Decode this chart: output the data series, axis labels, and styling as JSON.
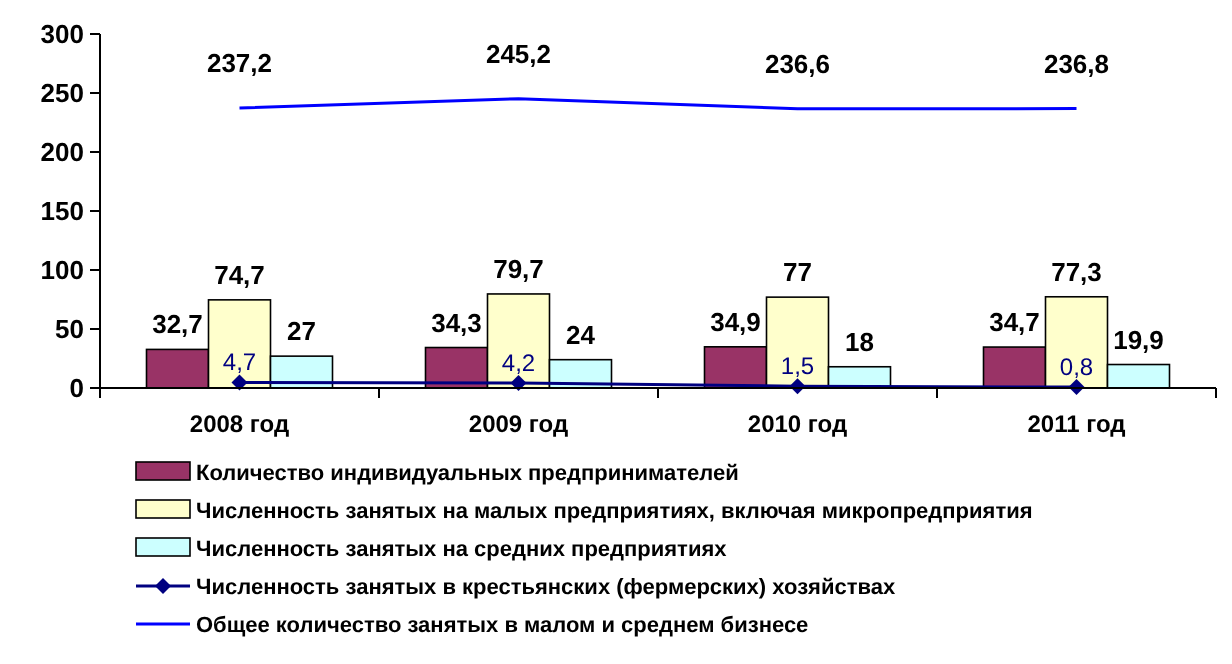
{
  "chart_data": {
    "type": "bar",
    "categories": [
      "2008 год",
      "2009 год",
      "2010 год",
      "2011 год"
    ],
    "ylim": [
      0,
      300
    ],
    "yticks": [
      0,
      50,
      100,
      150,
      200,
      250,
      300
    ],
    "grid": false,
    "legend": "bottom",
    "series": [
      {
        "name": "Количество индивидуальных предпринимателей",
        "color": "#993366",
        "values": [
          32.7,
          34.3,
          34.9,
          34.7
        ],
        "value_labels": [
          "32,7",
          "34,3",
          "34,9",
          "34,7"
        ]
      },
      {
        "name": "Численность занятых на малых предприятиях, включая микропредприятия",
        "color": "#ffffcc",
        "values": [
          74.7,
          79.7,
          77,
          77.3
        ],
        "value_labels": [
          "74,7",
          "79,7",
          "77",
          "77,3"
        ]
      },
      {
        "name": "Численность занятых на средних предприятиях",
        "color": "#ccffff",
        "values": [
          27,
          24,
          18,
          19.9
        ],
        "value_labels": [
          "27",
          "24",
          "18",
          "19,9"
        ]
      },
      {
        "name": "Численность занятых в крестьянских (фермерских) хозяйствах",
        "type": "line",
        "marker": "diamond",
        "color": "#000080",
        "values": [
          4.7,
          4.2,
          1.5,
          0.8
        ],
        "value_labels": [
          "4,7",
          "4,2",
          "1,5",
          "0,8"
        ]
      },
      {
        "name": "Общее количество занятых в малом и среднем бизнесе",
        "type": "line",
        "marker": "none",
        "color": "#0000ff",
        "values": [
          237.2,
          245.2,
          236.6,
          236.8
        ],
        "value_labels": [
          "237,2",
          "245,2",
          "236,6",
          "236,8"
        ]
      }
    ]
  }
}
